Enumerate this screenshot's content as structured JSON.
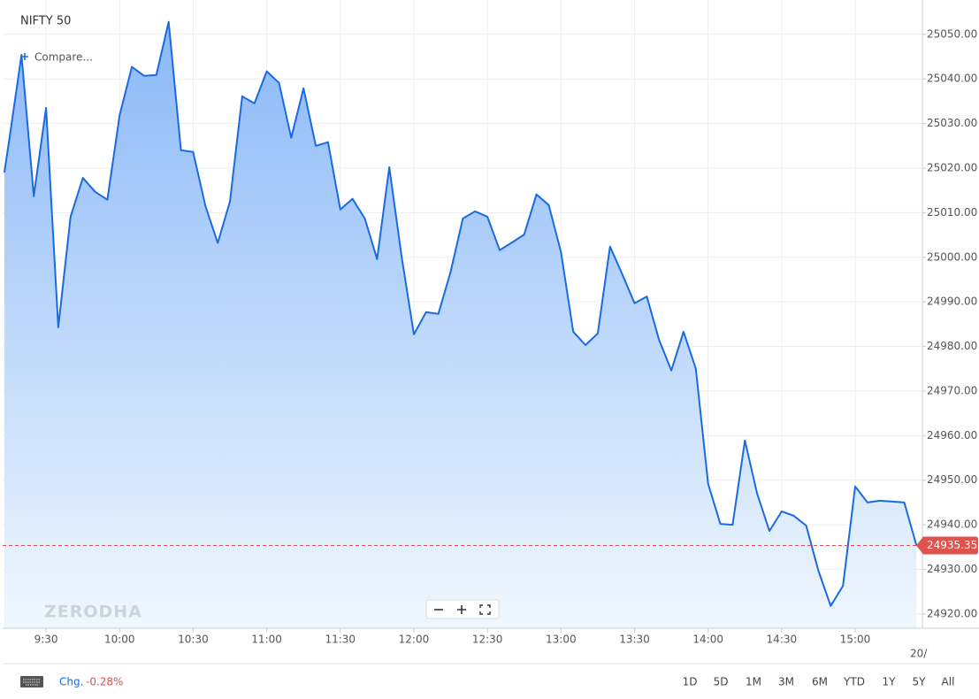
{
  "chart_data": {
    "type": "area",
    "title": "NIFTY 50",
    "compare_label": "Compare...",
    "watermark": "ZERODHA",
    "color": "#1a6be0",
    "x": [
      553,
      555,
      560,
      565,
      570,
      575,
      580,
      585,
      590,
      595,
      600,
      605,
      610,
      615,
      620,
      625,
      630,
      635,
      640,
      645,
      650,
      655,
      660,
      665,
      670,
      675,
      680,
      685,
      690,
      695,
      700,
      705,
      710,
      715,
      720,
      725,
      730,
      735,
      740,
      745,
      750,
      755,
      760,
      765,
      770,
      775,
      780,
      785,
      790,
      795,
      800,
      805,
      810,
      815,
      820,
      825,
      830,
      835,
      840,
      845,
      850,
      855,
      860,
      865,
      870,
      875,
      880,
      885,
      890,
      895,
      900,
      905,
      910,
      915,
      920,
      925
    ],
    "values": [
      25019.0,
      25026.4,
      25045.4,
      25013.7,
      25033.5,
      24984.3,
      25009.1,
      25017.8,
      25014.7,
      25012.9,
      25031.9,
      25042.7,
      25040.7,
      25040.9,
      25052.8,
      25024.0,
      25023.6,
      25011.5,
      25003.2,
      25012.5,
      25036.1,
      25034.5,
      25041.7,
      25039.1,
      25026.8,
      25037.9,
      25025.0,
      25025.8,
      25010.7,
      25013.1,
      25008.7,
      24999.6,
      25020.2,
      25000.2,
      24982.7,
      24987.7,
      24987.3,
      24996.8,
      25008.7,
      25010.3,
      25009.1,
      25001.6,
      25003.3,
      25005.1,
      25014.1,
      25011.7,
      25001.2,
      24983.3,
      24980.3,
      24982.9,
      25002.4,
      24996.2,
      24989.7,
      24991.2,
      24981.5,
      24974.6,
      24983.3,
      24975.0,
      24949.2,
      24940.2,
      24940.0,
      24958.9,
      24947.0,
      24938.6,
      24943.0,
      24942.0,
      24939.8,
      24929.7,
      24921.8,
      24926.3,
      24948.6,
      24945.0,
      24945.4,
      24945.2,
      24945.0,
      24935.35
    ],
    "last_price": 24935.35,
    "xlim": [
      552.3,
      927.4
    ],
    "xticks": [
      {
        "value": 570,
        "label": "9:30"
      },
      {
        "value": 600,
        "label": "10:00"
      },
      {
        "value": 630,
        "label": "10:30"
      },
      {
        "value": 660,
        "label": "11:00"
      },
      {
        "value": 690,
        "label": "11:30"
      },
      {
        "value": 720,
        "label": "12:00"
      },
      {
        "value": 750,
        "label": "12:30"
      },
      {
        "value": 780,
        "label": "13:00"
      },
      {
        "value": 810,
        "label": "13:30"
      },
      {
        "value": 840,
        "label": "14:00"
      },
      {
        "value": 870,
        "label": "14:30"
      },
      {
        "value": 900,
        "label": "15:00"
      }
    ],
    "date_label": "20/",
    "ylim": [
      24916.8,
      25057.7
    ],
    "yticks": [
      {
        "value": 24920,
        "label": "24920.00"
      },
      {
        "value": 24930,
        "label": "24930.00"
      },
      {
        "value": 24940,
        "label": "24940.00"
      },
      {
        "value": 24950,
        "label": "24950.00"
      },
      {
        "value": 24960,
        "label": "24960.00"
      },
      {
        "value": 24970,
        "label": "24970.00"
      },
      {
        "value": 24980,
        "label": "24980.00"
      },
      {
        "value": 24990,
        "label": "24990.00"
      },
      {
        "value": 25000,
        "label": "25000.00"
      },
      {
        "value": 25010,
        "label": "25010.00"
      },
      {
        "value": 25020,
        "label": "25020.00"
      },
      {
        "value": 25030,
        "label": "25030.00"
      },
      {
        "value": 25040,
        "label": "25040.00"
      },
      {
        "value": 25050,
        "label": "25050.00"
      }
    ],
    "grid": true,
    "change_label": "Chg.",
    "change_value": "-0.28%",
    "ranges": [
      "1D",
      "5D",
      "1M",
      "3M",
      "6M",
      "YTD",
      "1Y",
      "5Y",
      "All"
    ]
  }
}
